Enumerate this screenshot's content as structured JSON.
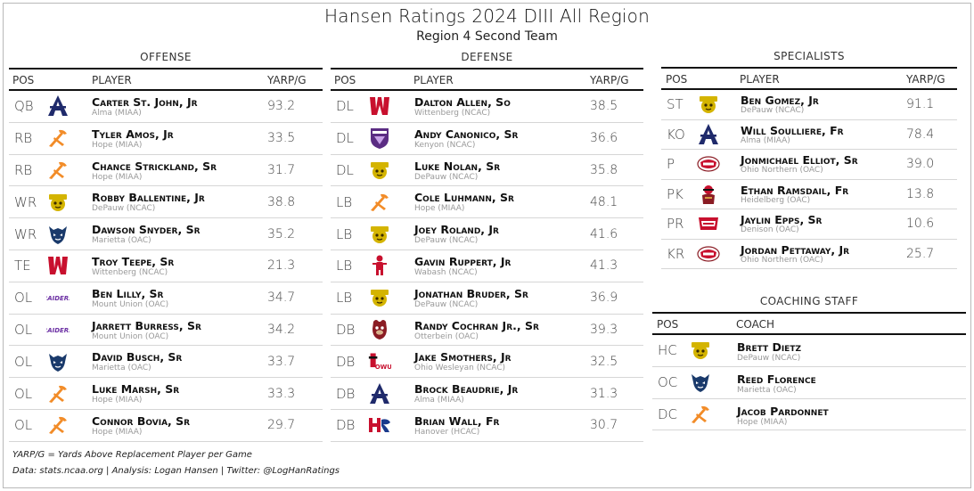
{
  "title": "Hansen Ratings 2024 DIII All Region",
  "subtitle": "Region 4 Second Team",
  "offense": {
    "title": "OFFENSE",
    "headers": {
      "pos": "POS",
      "player": "PLAYER",
      "value": "YARP/G"
    },
    "rows": [
      {
        "pos": "QB",
        "name": "Carter St. John, Jr",
        "school": "Alma (MIAA)",
        "value": "93.2",
        "logo": "alma-logo"
      },
      {
        "pos": "RB",
        "name": "Tyler Amos, Jr",
        "school": "Hope (MIAA)",
        "value": "33.5",
        "logo": "hope-logo"
      },
      {
        "pos": "RB",
        "name": "Chance Strickland, Sr",
        "school": "Hope (MIAA)",
        "value": "31.7",
        "logo": "hope-logo"
      },
      {
        "pos": "WR",
        "name": "Robby Ballentine, Jr",
        "school": "DePauw (NCAC)",
        "value": "38.8",
        "logo": "depauw-logo"
      },
      {
        "pos": "WR",
        "name": "Dawson Snyder, Sr",
        "school": "Marietta (OAC)",
        "value": "35.2",
        "logo": "marietta-logo"
      },
      {
        "pos": "TE",
        "name": "Troy Teepe, Sr",
        "school": "Wittenberg (NCAC)",
        "value": "21.3",
        "logo": "wittenberg-logo"
      },
      {
        "pos": "OL",
        "name": "Ben Lilly, Sr",
        "school": "Mount Union (OAC)",
        "value": "34.7",
        "logo": "mount-union-logo"
      },
      {
        "pos": "OL",
        "name": "Jarrett Burress, Sr",
        "school": "Mount Union (OAC)",
        "value": "34.2",
        "logo": "mount-union-logo"
      },
      {
        "pos": "OL",
        "name": "David Busch, Sr",
        "school": "Marietta (OAC)",
        "value": "33.7",
        "logo": "marietta-logo"
      },
      {
        "pos": "OL",
        "name": "Luke Marsh, Sr",
        "school": "Hope (MIAA)",
        "value": "33.3",
        "logo": "hope-logo"
      },
      {
        "pos": "OL",
        "name": "Connor Bovia, Sr",
        "school": "Hope (MIAA)",
        "value": "29.7",
        "logo": "hope-logo"
      }
    ]
  },
  "defense": {
    "title": "DEFENSE",
    "headers": {
      "pos": "POS",
      "player": "PLAYER",
      "value": "YARP/G"
    },
    "rows": [
      {
        "pos": "DL",
        "name": "Dalton Allen, So",
        "school": "Wittenberg (NCAC)",
        "value": "38.5",
        "logo": "wittenberg-logo"
      },
      {
        "pos": "DL",
        "name": "Andy Canonico, Sr",
        "school": "Kenyon (NCAC)",
        "value": "36.6",
        "logo": "kenyon-logo"
      },
      {
        "pos": "DL",
        "name": "Luke Nolan, Sr",
        "school": "DePauw (NCAC)",
        "value": "35.8",
        "logo": "depauw-logo"
      },
      {
        "pos": "LB",
        "name": "Cole Luhmann, Sr",
        "school": "Hope (MIAA)",
        "value": "48.1",
        "logo": "hope-logo"
      },
      {
        "pos": "LB",
        "name": "Joey Roland, Jr",
        "school": "DePauw (NCAC)",
        "value": "41.6",
        "logo": "depauw-logo"
      },
      {
        "pos": "LB",
        "name": "Gavin Ruppert, Jr",
        "school": "Wabash (NCAC)",
        "value": "41.3",
        "logo": "wabash-logo"
      },
      {
        "pos": "LB",
        "name": "Jonathan Bruder, Sr",
        "school": "DePauw (NCAC)",
        "value": "36.9",
        "logo": "depauw-logo"
      },
      {
        "pos": "DB",
        "name": "Randy Cochran Jr., Sr",
        "school": "Otterbein (OAC)",
        "value": "39.3",
        "logo": "otterbein-logo"
      },
      {
        "pos": "DB",
        "name": "Jake Smothers, Jr",
        "school": "Ohio Wesleyan (NCAC)",
        "value": "32.5",
        "logo": "ohio-wesleyan-logo"
      },
      {
        "pos": "DB",
        "name": "Brock Beaudrie, Jr",
        "school": "Alma (MIAA)",
        "value": "31.3",
        "logo": "alma-logo"
      },
      {
        "pos": "DB",
        "name": "Brian Wall, Fr",
        "school": "Hanover (HCAC)",
        "value": "30.7",
        "logo": "hanover-logo"
      }
    ]
  },
  "specialists": {
    "title": "SPECIALISTS",
    "headers": {
      "pos": "POS",
      "player": "PLAYER",
      "value": "YARP/G"
    },
    "rows": [
      {
        "pos": "ST",
        "name": "Ben Gomez, Jr",
        "school": "DePauw (NCAC)",
        "value": "91.1",
        "logo": "depauw-logo"
      },
      {
        "pos": "KO",
        "name": "Will Soulliere, Fr",
        "school": "Alma (MIAA)",
        "value": "78.4",
        "logo": "alma-logo"
      },
      {
        "pos": "P",
        "name": "Jonmichael Elliot, Sr",
        "school": "Ohio Northern (OAC)",
        "value": "39.0",
        "logo": "ohio-northern-logo"
      },
      {
        "pos": "PK",
        "name": "Ethan Ramsdail, Fr",
        "school": "Heidelberg (OAC)",
        "value": "13.8",
        "logo": "heidelberg-logo"
      },
      {
        "pos": "PR",
        "name": "Jaylin Epps, Sr",
        "school": "Denison (OAC)",
        "value": "10.6",
        "logo": "denison-logo"
      },
      {
        "pos": "KR",
        "name": "Jordan Pettaway, Jr",
        "school": "Ohio Northern (OAC)",
        "value": "25.7",
        "logo": "ohio-northern-logo"
      }
    ]
  },
  "coaching": {
    "title": "COACHING STAFF",
    "headers": {
      "pos": "POS",
      "coach": "COACH"
    },
    "rows": [
      {
        "pos": "HC",
        "name": "Brett Dietz",
        "school": "DePauw (NCAC)",
        "logo": "depauw-logo"
      },
      {
        "pos": "OC",
        "name": "Reed Florence",
        "school": "Marietta (OAC)",
        "logo": "marietta-logo"
      },
      {
        "pos": "DC",
        "name": "Jacob Pardonnet",
        "school": "Hope (MIAA)",
        "logo": "hope-logo"
      }
    ]
  },
  "footnotes": {
    "definition": "YARP/G = Yards Above Replacement Player per Game",
    "credits": "Data: stats.ncaa.org | Analysis: Logan Hansen | Twitter: @LogHanRatings"
  },
  "logo_text": {
    "mount_union": "RAIDERS",
    "ohio_wesleyan": "OWU"
  },
  "colors": {
    "alma": "#1f2a6b",
    "hope": "#f28c28",
    "depauw": "#d4b400",
    "marietta": "#1a3a6b",
    "wittenberg": "#c8102e",
    "kenyon": "#5b2c83",
    "mount_union": "#6b2fa3"
  }
}
